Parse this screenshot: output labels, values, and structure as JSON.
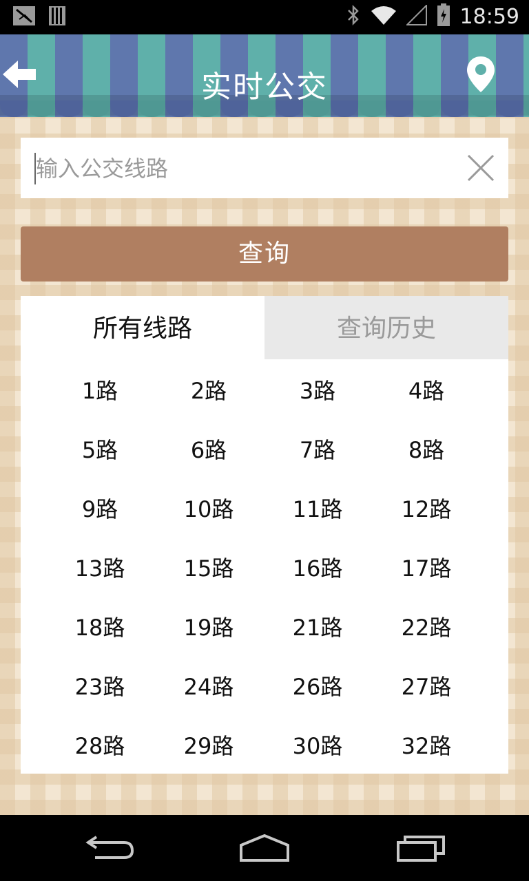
{
  "status_bar": {
    "time": "18:59",
    "icons": [
      "notification-icon",
      "storage-icon",
      "bluetooth-icon",
      "wifi-icon",
      "signal-icon",
      "battery-icon"
    ]
  },
  "header": {
    "title": "实时公交",
    "back_icon": "arrow-left-icon",
    "location_icon": "map-pin-icon",
    "colors": {
      "stripe_a": "#5f77ad",
      "stripe_b": "#5fb0aa"
    }
  },
  "search": {
    "placeholder": "输入公交线路",
    "value": "",
    "clear_icon": "close-icon"
  },
  "query_button": {
    "label": "查询",
    "color": "#b07f61"
  },
  "tabs": [
    {
      "label": "所有线路",
      "active": true
    },
    {
      "label": "查询历史",
      "active": false
    }
  ],
  "routes": [
    "1路",
    "2路",
    "3路",
    "4路",
    "5路",
    "6路",
    "7路",
    "8路",
    "9路",
    "10路",
    "11路",
    "12路",
    "13路",
    "15路",
    "16路",
    "17路",
    "18路",
    "19路",
    "21路",
    "22路",
    "23路",
    "24路",
    "26路",
    "27路",
    "28路",
    "29路",
    "30路",
    "32路"
  ],
  "nav_bar": {
    "icons": [
      "back-icon",
      "home-icon",
      "recents-icon"
    ]
  }
}
